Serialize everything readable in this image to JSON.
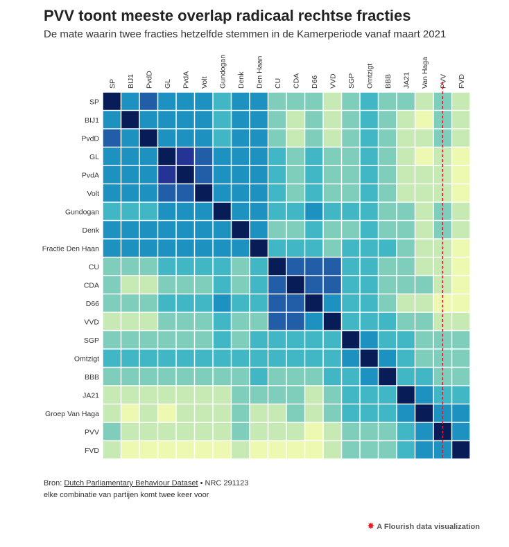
{
  "title": "PVV toont meeste overlap radicaal rechtse fracties",
  "subtitle": "De mate waarin twee fracties hetzelfde stemmen in de Kamerperiode vanaf maart 2021",
  "footer": {
    "source_prefix": "Bron:",
    "source_link": "Dutch Parliamentary Behaviour Dataset",
    "source_suffix": "• NRC 291123",
    "note": "elke combinatie van partijen komt twee keer voor"
  },
  "branding": {
    "star": "✸",
    "label": "A Flourish data visualization"
  },
  "colors": {
    "scale": [
      "#edf8b1",
      "#c7e9b4",
      "#7fcdbb",
      "#41b6c4",
      "#1d91c0",
      "#225ea8",
      "#253494",
      "#081d58"
    ],
    "highlight_line": "#e8162b",
    "cell_border": "#ffffff"
  },
  "chart_data": {
    "type": "heatmap",
    "title": "PVV toont meeste overlap radicaal rechtse fracties",
    "x_labels": [
      "SP",
      "BIJ1",
      "PvdD",
      "GL",
      "PvdA",
      "Volt",
      "Gundogan",
      "Denk",
      "Den Haan",
      "CU",
      "CDA",
      "D66",
      "VVD",
      "SGP",
      "Omtzigt",
      "BBB",
      "JA21",
      "Van Haga",
      "PVV",
      "FVD"
    ],
    "y_labels": [
      "SP",
      "BIJ1",
      "PvdD",
      "GL",
      "PvdA",
      "Volt",
      "Gundogan",
      "Denk",
      "Fractie Den Haan",
      "CU",
      "CDA",
      "D66",
      "VVD",
      "SGP",
      "Omtzigt",
      "BBB",
      "JA21",
      "Groep Van Haga",
      "PVV",
      "FVD"
    ],
    "value_scale": "0 = lowest overlap, 7 = full overlap",
    "highlight_column": "PVV",
    "values": [
      [
        7,
        4,
        5,
        4,
        4,
        4,
        3,
        4,
        4,
        2,
        2,
        2,
        1,
        2,
        3,
        2,
        2,
        1,
        2,
        1
      ],
      [
        4,
        7,
        4,
        4,
        4,
        4,
        3,
        4,
        4,
        2,
        1,
        2,
        1,
        2,
        3,
        2,
        1,
        0,
        2,
        1
      ],
      [
        5,
        4,
        7,
        4,
        4,
        4,
        3,
        4,
        4,
        2,
        1,
        2,
        1,
        2,
        3,
        2,
        1,
        1,
        2,
        1
      ],
      [
        4,
        4,
        4,
        7,
        6,
        5,
        4,
        4,
        4,
        3,
        2,
        3,
        2,
        2,
        3,
        2,
        1,
        0,
        1,
        0
      ],
      [
        4,
        4,
        4,
        6,
        7,
        5,
        4,
        4,
        4,
        3,
        2,
        3,
        2,
        2,
        3,
        2,
        1,
        1,
        1,
        0
      ],
      [
        4,
        4,
        4,
        5,
        5,
        7,
        4,
        4,
        4,
        3,
        2,
        3,
        2,
        2,
        3,
        2,
        1,
        1,
        1,
        0
      ],
      [
        3,
        3,
        3,
        4,
        4,
        4,
        7,
        4,
        4,
        3,
        3,
        4,
        3,
        3,
        3,
        2,
        2,
        1,
        2,
        1
      ],
      [
        4,
        4,
        4,
        4,
        4,
        4,
        4,
        7,
        4,
        2,
        2,
        3,
        2,
        2,
        3,
        2,
        2,
        1,
        2,
        1
      ],
      [
        4,
        4,
        4,
        4,
        4,
        4,
        4,
        4,
        7,
        3,
        3,
        3,
        2,
        3,
        3,
        3,
        2,
        1,
        1,
        0
      ],
      [
        2,
        2,
        2,
        3,
        3,
        3,
        3,
        2,
        3,
        7,
        5,
        5,
        5,
        3,
        3,
        2,
        2,
        1,
        1,
        0
      ],
      [
        2,
        1,
        1,
        2,
        2,
        2,
        3,
        2,
        3,
        5,
        7,
        5,
        5,
        3,
        3,
        2,
        2,
        2,
        1,
        0
      ],
      [
        2,
        2,
        2,
        3,
        3,
        3,
        4,
        3,
        3,
        5,
        5,
        7,
        4,
        3,
        3,
        2,
        1,
        1,
        0,
        0
      ],
      [
        1,
        1,
        1,
        2,
        2,
        2,
        3,
        2,
        2,
        5,
        5,
        4,
        7,
        3,
        3,
        3,
        2,
        2,
        1,
        1
      ],
      [
        2,
        2,
        2,
        2,
        2,
        2,
        3,
        2,
        3,
        3,
        3,
        3,
        3,
        7,
        4,
        3,
        3,
        2,
        2,
        2
      ],
      [
        3,
        3,
        3,
        3,
        3,
        3,
        3,
        3,
        3,
        3,
        3,
        3,
        3,
        4,
        7,
        4,
        3,
        2,
        2,
        2
      ],
      [
        2,
        2,
        2,
        2,
        2,
        2,
        2,
        2,
        3,
        2,
        2,
        2,
        3,
        3,
        4,
        7,
        3,
        3,
        2,
        2
      ],
      [
        1,
        1,
        1,
        1,
        1,
        1,
        1,
        2,
        2,
        2,
        2,
        1,
        2,
        3,
        3,
        3,
        7,
        4,
        3,
        3
      ],
      [
        1,
        0,
        1,
        0,
        1,
        1,
        1,
        2,
        1,
        1,
        2,
        1,
        2,
        3,
        3,
        3,
        4,
        7,
        4,
        4
      ],
      [
        2,
        1,
        1,
        1,
        1,
        1,
        1,
        2,
        1,
        1,
        1,
        0,
        1,
        2,
        2,
        2,
        3,
        4,
        7,
        4
      ],
      [
        1,
        0,
        0,
        0,
        0,
        0,
        0,
        1,
        0,
        0,
        0,
        0,
        1,
        2,
        2,
        2,
        3,
        4,
        4,
        7
      ]
    ]
  }
}
